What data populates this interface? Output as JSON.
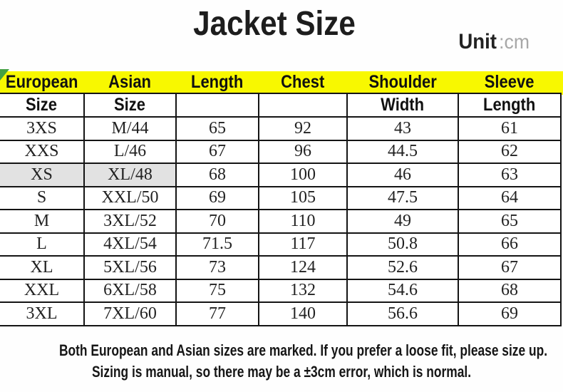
{
  "header": {
    "title": "Jacket Size",
    "unit_label": "Unit",
    "unit_value": ":cm"
  },
  "size_table": {
    "header_row1": [
      "European",
      "Asian",
      "Length",
      "Chest",
      "Shoulder",
      "Sleeve"
    ],
    "header_row2": [
      "Size",
      "Size",
      "",
      "",
      "Width",
      "Length"
    ],
    "rows": [
      [
        "3XS",
        "M/44",
        "65",
        "92",
        "43",
        "61"
      ],
      [
        "XXS",
        "L/46",
        "67",
        "96",
        "44.5",
        "62"
      ],
      [
        "XS",
        "XL/48",
        "68",
        "100",
        "46",
        "63"
      ],
      [
        "S",
        "XXL/50",
        "69",
        "105",
        "47.5",
        "64"
      ],
      [
        "M",
        "3XL/52",
        "70",
        "110",
        "49",
        "65"
      ],
      [
        "L",
        "4XL/54",
        "71.5",
        "117",
        "50.8",
        "66"
      ],
      [
        "XL",
        "5XL/56",
        "73",
        "124",
        "52.6",
        "67"
      ],
      [
        "XXL",
        "6XL/58",
        "75",
        "132",
        "54.6",
        "68"
      ],
      [
        "3XL",
        "7XL/60",
        "77",
        "140",
        "56.6",
        "69"
      ]
    ],
    "highlight": {
      "row_index": 2,
      "col_indices": [
        0,
        1
      ]
    }
  },
  "notes": {
    "line1": "Both European and Asian sizes are marked. If you prefer a loose fit, please size up.",
    "line2": "Sizing is manual, so there may be a ±3cm error, which is normal."
  },
  "colors": {
    "header_yellow": "#F8F800",
    "highlight_gray": "#E2E2E2",
    "corner_green": "#44A044",
    "unit_gray": "#A8A8A8"
  }
}
